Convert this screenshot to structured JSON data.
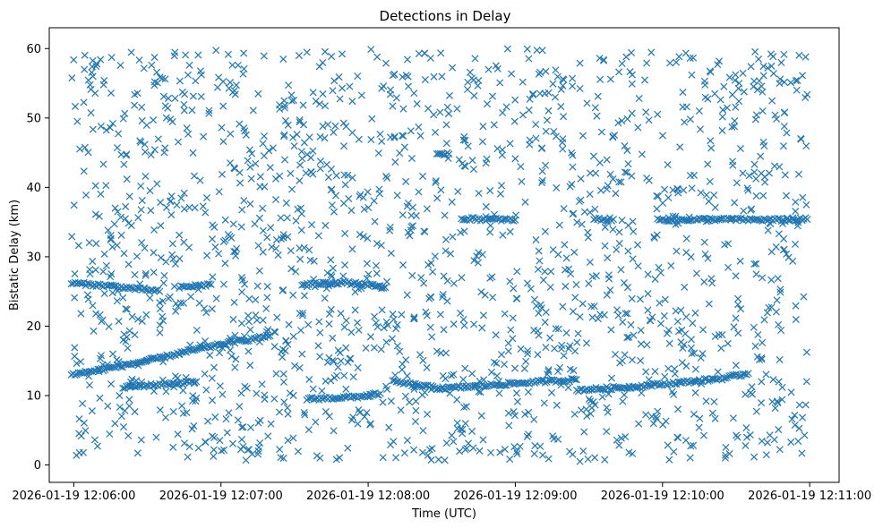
{
  "chart_data": {
    "type": "scatter",
    "title": "Detections in Delay",
    "xlabel": "Time (UTC)",
    "ylabel": "Bistatic Delay (km)",
    "marker": "x",
    "color": "#1f77b4",
    "xlim": [
      "2026-01-19 12:05:50",
      "2026-01-19 12:11:12"
    ],
    "ylim": [
      -2.5,
      63
    ],
    "xticks": [
      "2026-01-19 12:06:00",
      "2026-01-19 12:07:00",
      "2026-01-19 12:08:00",
      "2026-01-19 12:09:00",
      "2026-01-19 12:10:00",
      "2026-01-19 12:11:00"
    ],
    "yticks": [
      0,
      10,
      20,
      30,
      40,
      50,
      60
    ],
    "grid": false,
    "track_series": [
      {
        "x": [
          "2026-01-19 12:05:59",
          "2026-01-19 12:06:12",
          "2026-01-19 12:06:30",
          "2026-01-19 12:06:48",
          "2026-01-19 12:07:05",
          "2026-01-19 12:07:20"
        ],
        "y": [
          13.0,
          13.8,
          15.0,
          16.5,
          17.7,
          18.6
        ]
      },
      {
        "x": [
          "2026-01-19 12:06:20",
          "2026-01-19 12:06:35",
          "2026-01-19 12:06:50"
        ],
        "y": [
          11.2,
          11.6,
          12.0
        ]
      },
      {
        "x": [
          "2026-01-19 12:05:59",
          "2026-01-19 12:06:15",
          "2026-01-19 12:06:35"
        ],
        "y": [
          26.2,
          25.8,
          25.0
        ]
      },
      {
        "x": [
          "2026-01-19 12:06:43",
          "2026-01-19 12:06:56"
        ],
        "y": [
          25.6,
          26.0
        ]
      },
      {
        "x": [
          "2026-01-19 12:07:33",
          "2026-01-19 12:07:50",
          "2026-01-19 12:08:07"
        ],
        "y": [
          26.0,
          26.3,
          25.6
        ]
      },
      {
        "x": [
          "2026-01-19 12:07:35",
          "2026-01-19 12:07:55",
          "2026-01-19 12:08:05"
        ],
        "y": [
          9.5,
          9.8,
          10.3
        ]
      },
      {
        "x": [
          "2026-01-19 12:08:10",
          "2026-01-19 12:08:30",
          "2026-01-19 12:08:50",
          "2026-01-19 12:09:10",
          "2026-01-19 12:09:25"
        ],
        "y": [
          12.0,
          11.0,
          11.5,
          12.0,
          12.3
        ]
      },
      {
        "x": [
          "2026-01-19 12:09:25",
          "2026-01-19 12:09:45",
          "2026-01-19 12:10:05",
          "2026-01-19 12:10:25",
          "2026-01-19 12:10:35"
        ],
        "y": [
          10.8,
          11.2,
          11.8,
          12.5,
          13.2
        ]
      },
      {
        "x": [
          "2026-01-19 12:08:38",
          "2026-01-19 12:09:00"
        ],
        "y": [
          35.5,
          35.3
        ]
      },
      {
        "x": [
          "2026-01-19 12:09:32",
          "2026-01-19 12:09:40"
        ],
        "y": [
          35.4,
          35.4
        ]
      },
      {
        "x": [
          "2026-01-19 12:09:58",
          "2026-01-19 12:10:20",
          "2026-01-19 12:10:50",
          "2026-01-19 12:10:59"
        ],
        "y": [
          35.3,
          35.4,
          35.3,
          35.4
        ]
      },
      {
        "x": [
          "2026-01-19 12:08:28",
          "2026-01-19 12:08:33"
        ],
        "y": [
          44.8,
          44.8
        ]
      }
    ]
  }
}
